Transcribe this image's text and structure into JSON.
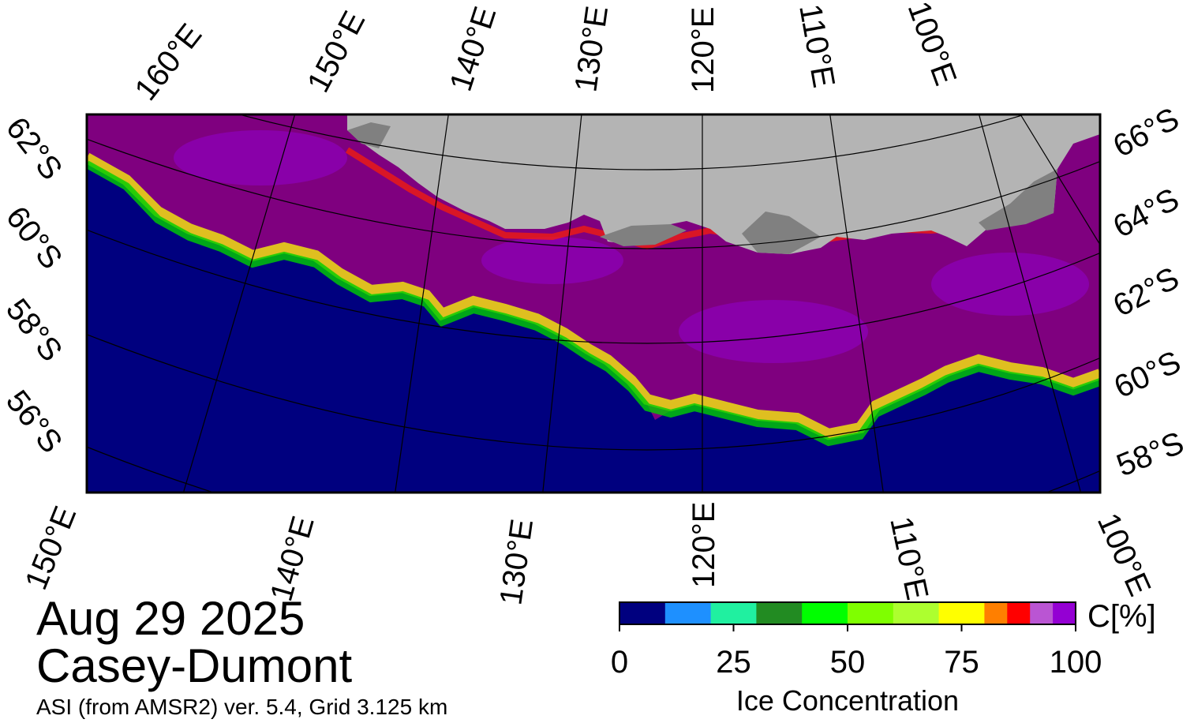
{
  "date": "Aug 29 2025",
  "region": "Casey-Dumont",
  "product": "ASI (from AMSR2) ver. 5.4,  Grid 3.125 km",
  "colors": {
    "ocean": "#00007f",
    "land_ice": "#b4b4b4",
    "land_dark": "#808080",
    "dense_ice": "#7f007f"
  },
  "top_lon_labels": [
    "160°E",
    "150°E",
    "140°E",
    "130°E",
    "120°E",
    "110°E",
    "100°E"
  ],
  "bottom_lon_labels": [
    "150°E",
    "140°E",
    "130°E",
    "120°E",
    "110°E",
    "100°E"
  ],
  "left_lat_labels": [
    "62°S",
    "60°S",
    "58°S",
    "56°S"
  ],
  "right_lat_labels": [
    "66°S",
    "64°S",
    "62°S",
    "60°S",
    "58°S"
  ],
  "colorbar": {
    "title": "Ice Concentration",
    "unit": "C[%]",
    "ticks": [
      "0",
      "25",
      "50",
      "75",
      "100"
    ],
    "tick_values": [
      0,
      25,
      50,
      75,
      100
    ],
    "range": [
      0,
      100
    ],
    "bins": [
      {
        "from": 0,
        "to": 10,
        "color": "#00007f"
      },
      {
        "from": 10,
        "to": 20,
        "color": "#1e90ff"
      },
      {
        "from": 20,
        "to": 30,
        "color": "#20f0a0"
      },
      {
        "from": 30,
        "to": 40,
        "color": "#228b22"
      },
      {
        "from": 40,
        "to": 50,
        "color": "#00ff00"
      },
      {
        "from": 50,
        "to": 60,
        "color": "#7fff00"
      },
      {
        "from": 60,
        "to": 70,
        "color": "#adff2f"
      },
      {
        "from": 70,
        "to": 80,
        "color": "#ffff00"
      },
      {
        "from": 80,
        "to": 85,
        "color": "#ff7f00"
      },
      {
        "from": 85,
        "to": 90,
        "color": "#ff0000"
      },
      {
        "from": 90,
        "to": 95,
        "color": "#ba55d3"
      },
      {
        "from": 95,
        "to": 100,
        "color": "#9400d3"
      }
    ]
  }
}
